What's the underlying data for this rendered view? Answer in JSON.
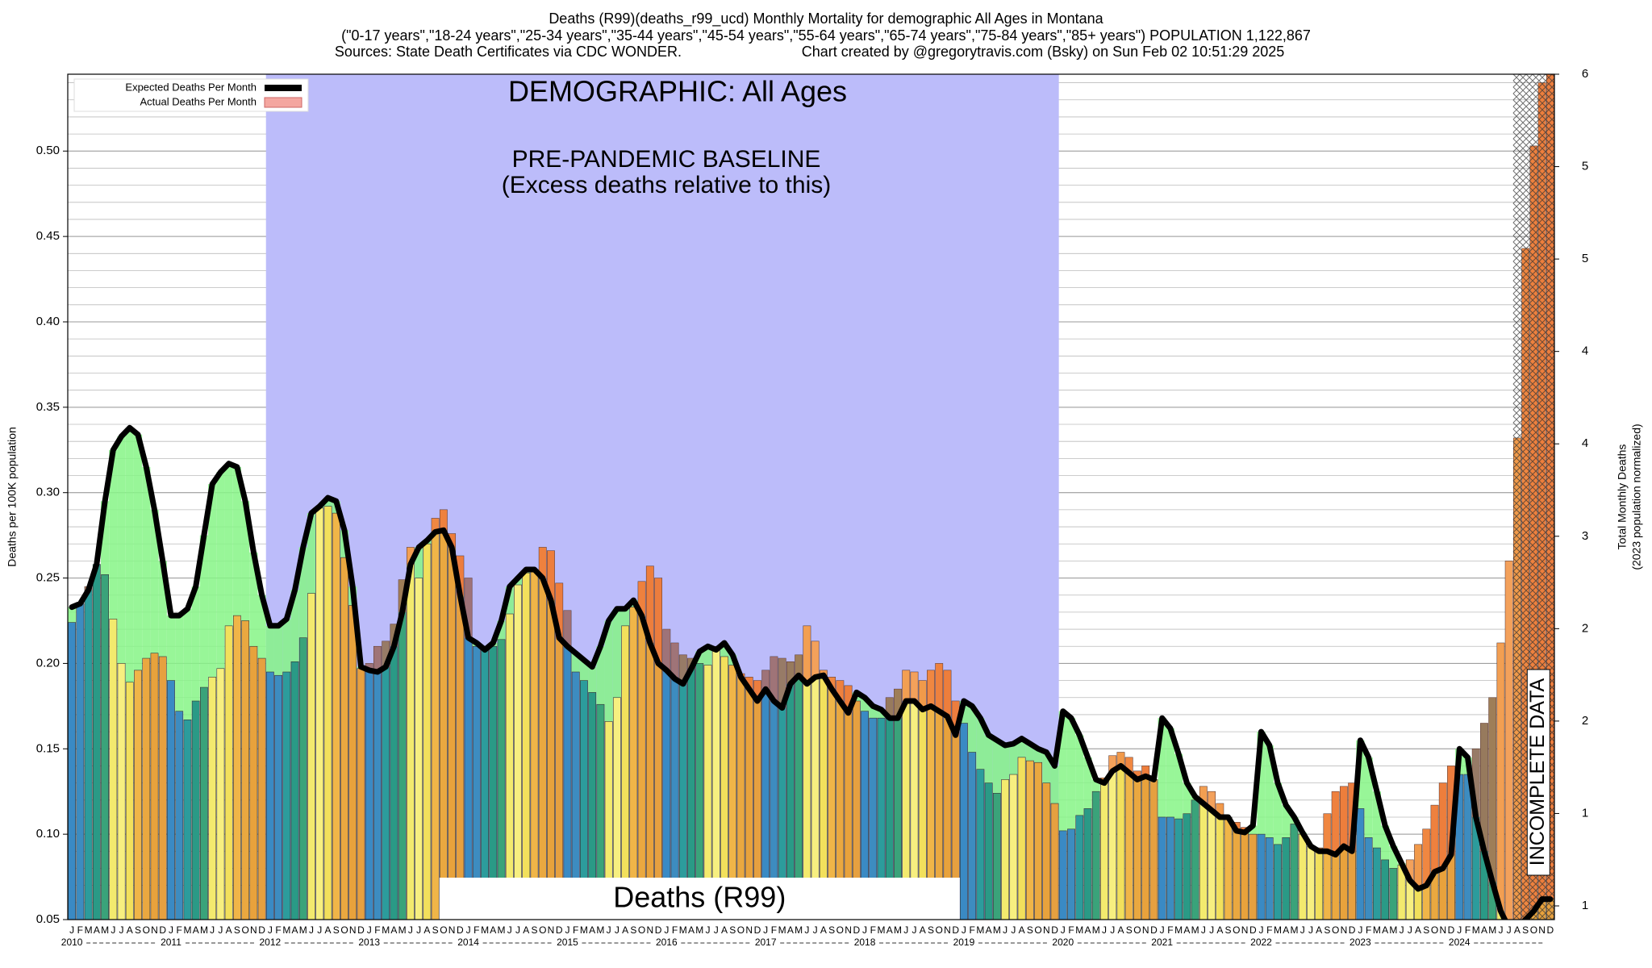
{
  "chart_data": {
    "type": "bar",
    "title": "Deaths (R99)(deaths_r99_ucd) Monthly Mortality for demographic All Ages in Montana",
    "subtitle": "(\"0-17 years\",\"18-24 years\",\"25-34 years\",\"35-44 years\",\"45-54 years\",\"55-64 years\",\"65-74 years\",\"75-84 years\",\"85+ years\") POPULATION 1,122,867",
    "sources": "Sources: State Death Certificates via CDC WONDER.",
    "credit": "Chart created by @gregorytravis.com (Bsky) on Sun Feb 02 10:51:29 2025",
    "ylabel": "Deaths per 100K population",
    "y2label": "Total Monthly Deaths",
    "y2sublabel": "(2023 population normalized)",
    "annotations": {
      "demographic": "DEMOGRAPHIC: All Ages",
      "baseline": "PRE-PANDEMIC BASELINE",
      "baseline_note": "(Excess deaths relative to this)",
      "cause": "Deaths (R99)",
      "incomplete": "INCOMPLETE DATA"
    },
    "categories": [
      "J",
      "F",
      "M",
      "A",
      "M",
      "J",
      "J",
      "A",
      "S",
      "O",
      "N",
      "D",
      "J",
      "F",
      "M",
      "A",
      "M",
      "J",
      "J",
      "A",
      "S",
      "O",
      "N",
      "D",
      "J",
      "F",
      "M",
      "A",
      "M",
      "J",
      "J",
      "A",
      "S",
      "O",
      "N",
      "D",
      "J",
      "F",
      "M",
      "A",
      "M",
      "J",
      "J",
      "A",
      "S",
      "O",
      "N",
      "D",
      "J",
      "F",
      "M",
      "A",
      "M",
      "J",
      "J",
      "A",
      "S",
      "O",
      "N",
      "D",
      "J",
      "F",
      "M",
      "A",
      "M",
      "J",
      "J",
      "A",
      "S",
      "O",
      "N",
      "D",
      "J",
      "F",
      "M",
      "A",
      "M",
      "J",
      "J",
      "A",
      "S",
      "O",
      "N",
      "D",
      "J",
      "F",
      "M",
      "A",
      "M",
      "J",
      "J",
      "A",
      "S",
      "O",
      "N",
      "D",
      "J",
      "F",
      "M",
      "A",
      "M",
      "J",
      "J",
      "A",
      "S",
      "O",
      "N",
      "D",
      "J",
      "F",
      "M",
      "A",
      "M",
      "J",
      "J",
      "A",
      "S",
      "O",
      "N",
      "D",
      "J",
      "F",
      "M",
      "A",
      "M",
      "J",
      "J",
      "A",
      "S",
      "O",
      "N",
      "D",
      "J",
      "F",
      "M",
      "A",
      "M",
      "J",
      "J",
      "A",
      "S",
      "O",
      "N",
      "D",
      "J",
      "F",
      "M",
      "A",
      "M",
      "J",
      "J",
      "A",
      "S",
      "O",
      "N",
      "D",
      "J",
      "F",
      "M",
      "A",
      "M",
      "J",
      "J",
      "A",
      "S",
      "O",
      "N",
      "D",
      "J",
      "F",
      "M",
      "A",
      "M",
      "J",
      "J",
      "A",
      "S",
      "O",
      "N",
      "D"
    ],
    "year_labels": [
      "2010",
      "2011",
      "2012",
      "2013",
      "2014",
      "2015",
      "2016",
      "2017",
      "2018",
      "2019",
      "2020",
      "2021",
      "2022",
      "2023",
      "2024"
    ],
    "month_colors": [
      "#3a8ac4",
      "#3d8cc0",
      "#2c9c9c",
      "#2a9a86",
      "#3aa37a",
      "#f3ea6e",
      "#f7ef80",
      "#f2e05c",
      "#f0b548",
      "#eaa840",
      "#e8a23c",
      "#e6a040"
    ],
    "series": [
      {
        "name": "Expected Deaths Per Month",
        "color": "#000000",
        "values": [
          0.233,
          0.235,
          0.243,
          0.258,
          0.295,
          0.325,
          0.333,
          0.338,
          0.334,
          0.315,
          0.29,
          0.26,
          0.228,
          0.228,
          0.232,
          0.245,
          0.275,
          0.305,
          0.312,
          0.317,
          0.315,
          0.295,
          0.265,
          0.24,
          0.222,
          0.222,
          0.226,
          0.243,
          0.268,
          0.288,
          0.292,
          0.297,
          0.295,
          0.278,
          0.245,
          0.198,
          0.196,
          0.195,
          0.198,
          0.21,
          0.23,
          0.258,
          0.268,
          0.272,
          0.277,
          0.278,
          0.268,
          0.24,
          0.215,
          0.212,
          0.208,
          0.212,
          0.225,
          0.245,
          0.25,
          0.255,
          0.255,
          0.25,
          0.237,
          0.215,
          0.21,
          0.206,
          0.202,
          0.198,
          0.21,
          0.225,
          0.232,
          0.232,
          0.237,
          0.228,
          0.212,
          0.2,
          0.196,
          0.191,
          0.188,
          0.197,
          0.207,
          0.21,
          0.208,
          0.212,
          0.205,
          0.192,
          0.185,
          0.178,
          0.185,
          0.178,
          0.174,
          0.188,
          0.193,
          0.188,
          0.192,
          0.193,
          0.185,
          0.178,
          0.171,
          0.183,
          0.18,
          0.175,
          0.173,
          0.168,
          0.168,
          0.178,
          0.178,
          0.173,
          0.175,
          0.172,
          0.169,
          0.158,
          0.178,
          0.175,
          0.168,
          0.158,
          0.155,
          0.152,
          0.153,
          0.156,
          0.153,
          0.15,
          0.148,
          0.14,
          0.172,
          0.168,
          0.158,
          0.145,
          0.132,
          0.13,
          0.137,
          0.14,
          0.136,
          0.132,
          0.134,
          0.132,
          0.168,
          0.162,
          0.147,
          0.13,
          0.122,
          0.118,
          0.114,
          0.11,
          0.11,
          0.102,
          0.101,
          0.105,
          0.16,
          0.152,
          0.13,
          0.117,
          0.11,
          0.101,
          0.093,
          0.09,
          0.09,
          0.088,
          0.093,
          0.09,
          0.155,
          0.145,
          0.125,
          0.105,
          0.093,
          0.083,
          0.073,
          0.068,
          0.07,
          0.078,
          0.08,
          0.088,
          0.15,
          0.145,
          0.11,
          0.09,
          0.072,
          0.055,
          0.045,
          0.045,
          0.05,
          0.055,
          0.062,
          0.062
        ]
      },
      {
        "name": "Actual Deaths Per Month",
        "color": "#f4a6a0",
        "values": [
          0.224,
          0.235,
          0.245,
          0.258,
          0.252,
          0.226,
          0.2,
          0.189,
          0.196,
          0.203,
          0.206,
          0.204,
          0.19,
          0.172,
          0.167,
          0.178,
          0.186,
          0.192,
          0.197,
          0.222,
          0.228,
          0.225,
          0.21,
          0.203,
          0.195,
          0.193,
          0.195,
          0.201,
          0.215,
          0.241,
          0.291,
          0.292,
          0.288,
          0.262,
          0.234,
          0.197,
          0.2,
          0.21,
          0.213,
          0.223,
          0.249,
          0.268,
          0.25,
          0.27,
          0.285,
          0.29,
          0.276,
          0.263,
          0.25,
          0.21,
          0.208,
          0.21,
          0.214,
          0.229,
          0.246,
          0.253,
          0.255,
          0.268,
          0.266,
          0.247,
          0.231,
          0.195,
          0.19,
          0.183,
          0.176,
          0.166,
          0.18,
          0.222,
          0.233,
          0.248,
          0.257,
          0.25,
          0.22,
          0.212,
          0.205,
          0.203,
          0.2,
          0.199,
          0.21,
          0.204,
          0.199,
          0.194,
          0.192,
          0.19,
          0.196,
          0.204,
          0.203,
          0.201,
          0.205,
          0.222,
          0.213,
          0.196,
          0.192,
          0.19,
          0.187,
          0.178,
          0.172,
          0.168,
          0.168,
          0.18,
          0.185,
          0.196,
          0.195,
          0.19,
          0.196,
          0.2,
          0.196,
          0.178,
          0.165,
          0.148,
          0.138,
          0.13,
          0.124,
          0.132,
          0.135,
          0.145,
          0.143,
          0.142,
          0.13,
          0.118,
          0.102,
          0.103,
          0.111,
          0.115,
          0.125,
          0.133,
          0.146,
          0.148,
          0.145,
          0.137,
          0.14,
          0.132,
          0.11,
          0.11,
          0.109,
          0.112,
          0.12,
          0.128,
          0.125,
          0.118,
          0.11,
          0.107,
          0.104,
          0.1,
          0.1,
          0.098,
          0.094,
          0.098,
          0.106,
          0.1,
          0.093,
          0.092,
          0.112,
          0.125,
          0.128,
          0.13,
          0.115,
          0.098,
          0.092,
          0.085,
          0.08,
          0.082,
          0.085,
          0.094,
          0.103,
          0.117,
          0.13,
          0.14,
          0.135,
          0.135,
          0.15,
          0.165,
          0.18,
          0.212,
          0.26,
          0.332,
          0.443,
          0.503,
          0.54,
          0.545
        ]
      }
    ],
    "shortfall_color": "#86f486",
    "excess_color": "#f0603c",
    "baseline_color": "#bcbcfa",
    "ylim": [
      0.05,
      0.545
    ],
    "yticks": [
      0.05,
      {
        "value": 0.1,
        "label": "0.10"
      },
      0.15,
      {
        "value": 0.2,
        "label": "0.20"
      },
      0.25,
      {
        "value": 0.3,
        "label": "0.30"
      },
      0.35,
      {
        "value": 0.4,
        "label": "0.40"
      },
      0.45,
      {
        "value": 0.5,
        "label": "0.50"
      }
    ],
    "minor_grid": 0.01,
    "y2lim": [
      0.614,
      5.92
    ],
    "y2ticks": [
      {
        "value": 0.7,
        "label": "1"
      },
      {
        "value": 1.28,
        "label": "1"
      },
      {
        "value": 1.86,
        "label": "2"
      },
      {
        "value": 2.44,
        "label": "2"
      },
      {
        "value": 3.02,
        "label": "3"
      },
      {
        "value": 3.6,
        "label": "4"
      },
      {
        "value": 4.18,
        "label": "4"
      },
      {
        "value": 4.76,
        "label": "5"
      },
      {
        "value": 5.34,
        "label": "5"
      },
      {
        "value": 5.92,
        "label": "6"
      }
    ],
    "grid": true,
    "legend": "upper left"
  }
}
